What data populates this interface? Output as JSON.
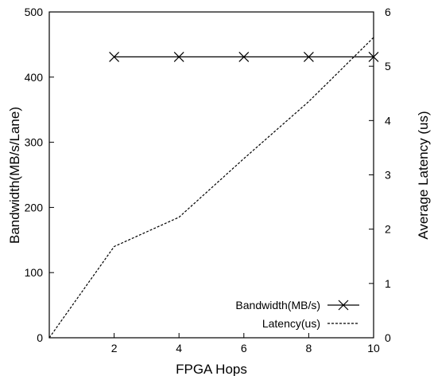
{
  "chart_data": {
    "type": "line",
    "xlabel": "FPGA Hops",
    "ylabel_left": "Bandwidth(MB/s/Lane)",
    "ylabel_right": "Average Latency (us)",
    "xlim": [
      0,
      10
    ],
    "xticks": [
      2,
      4,
      6,
      8,
      10
    ],
    "ylim_left": [
      0,
      500
    ],
    "yticks_left": [
      0,
      100,
      200,
      300,
      400,
      500
    ],
    "ylim_right": [
      0,
      6
    ],
    "yticks_right": [
      0,
      1,
      2,
      3,
      4,
      5,
      6
    ],
    "grid": false,
    "legend_position": "bottom-right",
    "series": [
      {
        "name": "Bandwidth(MB/s)",
        "axis": "left",
        "style": "solid",
        "marker": "x",
        "x": [
          2,
          4,
          6,
          8,
          10
        ],
        "y": [
          431,
          431,
          431,
          431,
          431
        ]
      },
      {
        "name": "Latency(us)",
        "axis": "right",
        "style": "dashed",
        "marker": "none",
        "x": [
          0,
          2,
          4,
          6,
          8,
          10
        ],
        "y": [
          0,
          1.68,
          2.22,
          3.3,
          4.35,
          5.53
        ]
      }
    ]
  }
}
